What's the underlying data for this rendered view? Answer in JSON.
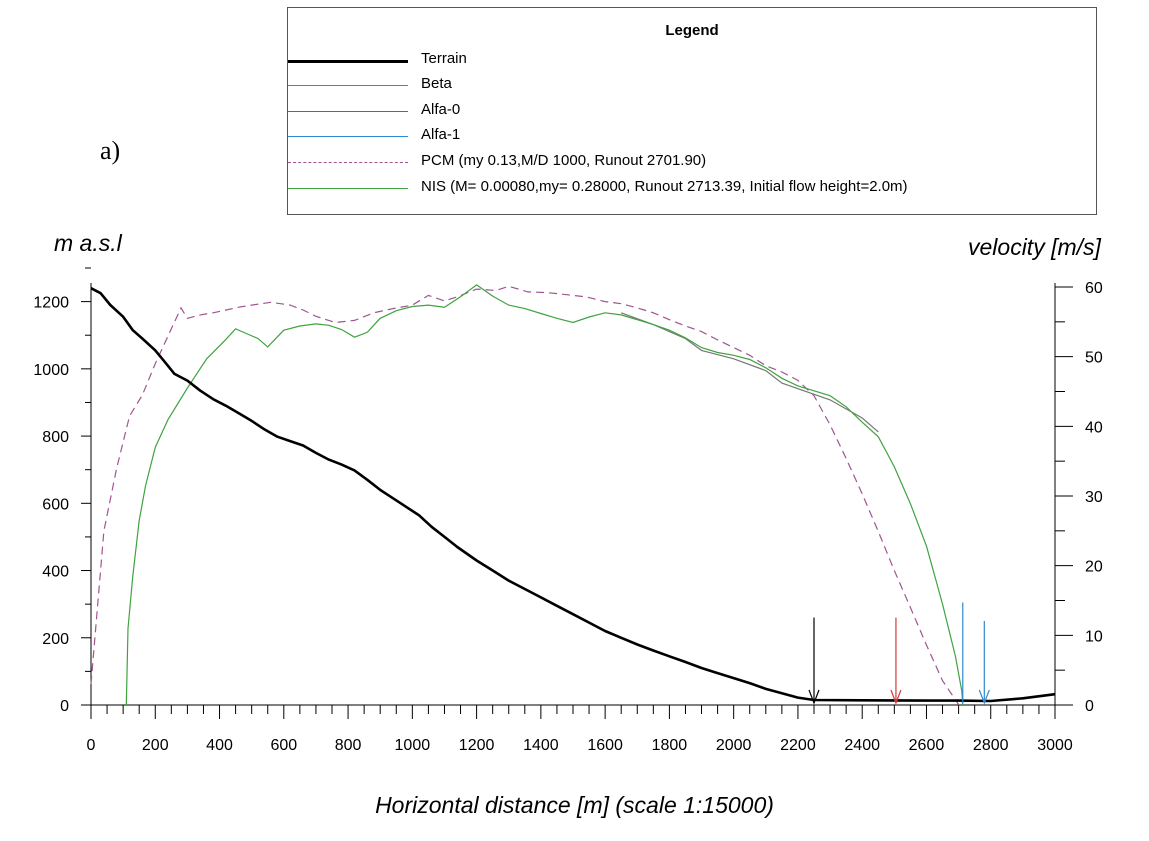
{
  "panel_label": "a)",
  "legend": {
    "title": "Legend",
    "items": [
      {
        "label": "Terrain",
        "color": "#000000",
        "style": "thick"
      },
      {
        "label": "Beta",
        "color": "#777777",
        "style": "solid"
      },
      {
        "label": "Alfa-0",
        "color": "#d43a3a",
        "style": "solid"
      },
      {
        "label": "Alfa-1",
        "color": "#2f88d0",
        "style": "solid"
      },
      {
        "label": "PCM (my 0.13,M/D 1000, Runout 2701.90)",
        "color": "#a05590",
        "style": "dashed"
      },
      {
        "label": "NIS (M= 0.00080,my= 0.28000, Runout 2713.39, Initial flow height=2.0m)",
        "color": "#3fa33f",
        "style": "solid"
      }
    ]
  },
  "chart_data": {
    "type": "line",
    "title": "",
    "xlabel": "Horizontal distance [m] (scale 1:15000)",
    "ylabel": "m a.s.l",
    "y2label": "velocity [m/s]",
    "xlim": [
      0,
      3000
    ],
    "ylim": [
      0,
      1300
    ],
    "y2lim": [
      0,
      60
    ],
    "xticks": [
      0,
      200,
      400,
      600,
      800,
      1000,
      1200,
      1400,
      1600,
      1800,
      2000,
      2200,
      2400,
      2600,
      2800,
      3000
    ],
    "yticks": [
      0,
      200,
      400,
      600,
      800,
      1000,
      1200
    ],
    "y2ticks": [
      0,
      10,
      20,
      30,
      40,
      50,
      60
    ],
    "terrain": {
      "x": [
        0,
        30,
        60,
        100,
        130,
        160,
        200,
        230,
        260,
        300,
        340,
        380,
        420,
        460,
        500,
        540,
        580,
        620,
        660,
        700,
        740,
        780,
        820,
        860,
        900,
        940,
        980,
        1020,
        1060,
        1100,
        1140,
        1200,
        1250,
        1300,
        1350,
        1400,
        1450,
        1500,
        1550,
        1600,
        1650,
        1700,
        1750,
        1800,
        1850,
        1900,
        1950,
        2000,
        2050,
        2100,
        2150,
        2200,
        2250,
        2400,
        2600,
        2700,
        2800,
        2900,
        3000
      ],
      "y": [
        1240,
        1225,
        1190,
        1155,
        1115,
        1090,
        1055,
        1020,
        985,
        965,
        935,
        910,
        890,
        868,
        845,
        820,
        798,
        785,
        772,
        750,
        730,
        715,
        698,
        670,
        640,
        615,
        590,
        565,
        530,
        500,
        470,
        430,
        400,
        370,
        345,
        320,
        295,
        270,
        245,
        220,
        200,
        180,
        162,
        145,
        128,
        110,
        95,
        80,
        65,
        48,
        35,
        22,
        15,
        14,
        13,
        13,
        12,
        20,
        32
      ]
    },
    "velocity_series": [
      {
        "name": "Beta",
        "color": "#777777",
        "style": "solid",
        "x": [
          1650,
          1750,
          1850,
          1900,
          2000,
          2100,
          2150,
          2200,
          2300,
          2400,
          2450
        ],
        "y": [
          56.3,
          54.6,
          52.6,
          50.9,
          49.7,
          48.0,
          46.2,
          45.4,
          43.8,
          41.2,
          39.2
        ]
      },
      {
        "name": "PCM (my 0.13,M/D 1000, Runout 2701.90)",
        "color": "#a05590",
        "style": "dashed",
        "x": [
          0,
          40,
          80,
          120,
          160,
          200,
          240,
          280,
          300,
          340,
          380,
          420,
          460,
          500,
          560,
          620,
          660,
          700,
          760,
          820,
          880,
          940,
          1000,
          1050,
          1100,
          1140,
          1200,
          1260,
          1300,
          1360,
          1420,
          1480,
          1540,
          1600,
          1650,
          1700,
          1750,
          1800,
          1850,
          1900,
          1950,
          2000,
          2050,
          2100,
          2150,
          2200,
          2250,
          2300,
          2350,
          2400,
          2450,
          2500,
          2550,
          2600,
          2650,
          2701
        ],
        "y": [
          3,
          25,
          34,
          41.5,
          44.5,
          49,
          53,
          57,
          55.5,
          56,
          56.3,
          56.7,
          57.1,
          57.4,
          57.8,
          57.4,
          56.7,
          55.8,
          54.9,
          55.2,
          56.3,
          56.9,
          57.4,
          58.8,
          58,
          58.6,
          59.7,
          59.5,
          60.1,
          59.3,
          59.2,
          58.9,
          58.6,
          57.9,
          57.6,
          57,
          56.3,
          55.3,
          54.4,
          53.6,
          52.4,
          51.3,
          50.2,
          48.7,
          47.8,
          46.6,
          44.4,
          40.2,
          35.4,
          30.3,
          24.9,
          19.3,
          14,
          8.6,
          3.5,
          0
        ]
      },
      {
        "name": "NIS (M= 0.00080,my= 0.28000, Runout 2713.39, Initial flow height=2.0m)",
        "color": "#3fa33f",
        "style": "solid",
        "x": [
          110,
          115,
          130,
          150,
          170,
          200,
          240,
          300,
          360,
          420,
          450,
          480,
          520,
          550,
          600,
          650,
          700,
          740,
          780,
          820,
          860,
          900,
          950,
          1000,
          1050,
          1100,
          1150,
          1200,
          1250,
          1300,
          1350,
          1400,
          1450,
          1500,
          1550,
          1600,
          1650,
          1700,
          1750,
          1800,
          1850,
          1900,
          1950,
          2000,
          2050,
          2100,
          2150,
          2200,
          2250,
          2300,
          2350,
          2400,
          2450,
          2500,
          2550,
          2600,
          2650,
          2690,
          2710,
          2713
        ],
        "y": [
          0,
          11,
          18.5,
          26.5,
          31.5,
          37,
          41,
          45.5,
          49.7,
          52.5,
          54,
          53.4,
          52.6,
          51.4,
          53.8,
          54.4,
          54.7,
          54.5,
          53.9,
          52.8,
          53.5,
          55.5,
          56.6,
          57.2,
          57.4,
          57.1,
          58.6,
          60.3,
          58.7,
          57.4,
          56.9,
          56.2,
          55.5,
          54.9,
          55.7,
          56.3,
          56,
          55.3,
          54.6,
          53.8,
          52.7,
          51.3,
          50.6,
          50.2,
          49.6,
          48.4,
          46.9,
          45.8,
          45.1,
          44.4,
          42.8,
          40.6,
          38.5,
          34.2,
          28.9,
          22.8,
          14.5,
          7,
          2,
          0
        ]
      }
    ],
    "markers": [
      {
        "name": "Beta",
        "color": "#000000",
        "x": 2250,
        "y_top": 260
      },
      {
        "name": "Alfa-0",
        "color": "#d43a3a",
        "x": 2505,
        "y_top": 260
      },
      {
        "name": "Alfa-1",
        "color": "#2f88d0",
        "x": 2780,
        "y_top": 250
      },
      {
        "name": "NIS runout",
        "color": "#2f88d0",
        "x": 2713,
        "y_top": 305
      }
    ]
  }
}
